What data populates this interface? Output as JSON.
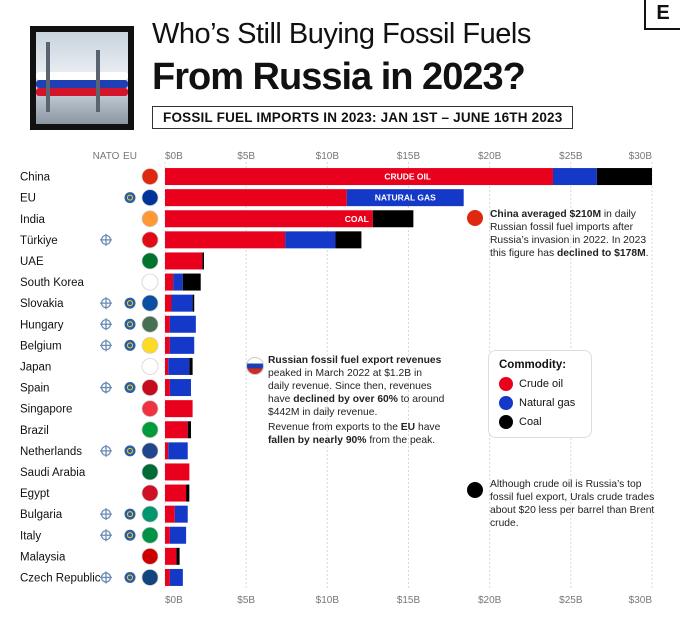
{
  "header": {
    "title_line1": "Who’s Still Buying Fossil Fuels",
    "title_line2": "From Russia in 2023?",
    "subtitle": "FOSSIL FUEL IMPORTS IN 2023: JAN 1ST – JUNE 16TH 2023",
    "corner_logo": "E"
  },
  "column_labels": {
    "nato": "NATO",
    "eu": "EU"
  },
  "legend": {
    "title": "Commodity:",
    "items": [
      {
        "label": "Crude oil",
        "color": "#e8001c"
      },
      {
        "label": "Natural gas",
        "color": "#1438c8"
      },
      {
        "label": "Coal",
        "color": "#000000"
      }
    ]
  },
  "notes": {
    "china_strong1": "China averaged $210M",
    "china_rest1": " in daily Russian fossil fuel imports after Russia’s invasion in 2022. In 2023 this figure has ",
    "china_strong2": "declined to $178M",
    "china_end": ".",
    "revenue_strong1": "Russian fossil fuel export revenues",
    "revenue_rest1": " peaked in March 2022 at $1.2B in daily revenue. Since then, revenues have ",
    "revenue_strong2": "declined by over 60%",
    "revenue_rest2": " to around $442M in daily revenue.",
    "eu_rest1": "Revenue from exports to the ",
    "eu_strong1": "EU",
    "eu_rest2": " have ",
    "eu_strong2": "fallen by nearly 90%",
    "eu_rest3": " from the peak.",
    "oil": "Although crude oil is Russia’s top fossil fuel export, Urals crude trades about $20 less per barrel than Brent crude."
  },
  "chart_data": {
    "type": "bar",
    "orientation": "horizontal",
    "stacked": true,
    "xlim": [
      0,
      30
    ],
    "ticks": [
      "$0B",
      "$5B",
      "$10B",
      "$15B",
      "$20B",
      "$25B",
      "$30B"
    ],
    "tick_values": [
      0,
      5,
      10,
      15,
      20,
      25,
      30
    ],
    "bar_labels": {
      "China": "CRUDE OIL",
      "EU": "NATURAL GAS",
      "India": "COAL"
    },
    "categories": [
      "China",
      "EU",
      "India",
      "Türkiye",
      "UAE",
      "South Korea",
      "Slovakia",
      "Hungary",
      "Belgium",
      "Japan",
      "Spain",
      "Singapore",
      "Brazil",
      "Netherlands",
      "Saudi Arabia",
      "Egypt",
      "Bulgaria",
      "Italy",
      "Malaysia",
      "Czech Republic"
    ],
    "nato": [
      false,
      false,
      false,
      true,
      false,
      false,
      true,
      true,
      true,
      false,
      true,
      false,
      false,
      true,
      false,
      false,
      true,
      true,
      false,
      true
    ],
    "eu": [
      false,
      true,
      false,
      false,
      false,
      false,
      true,
      true,
      true,
      false,
      true,
      false,
      false,
      true,
      false,
      false,
      true,
      true,
      false,
      true
    ],
    "series": [
      {
        "name": "Crude oil",
        "color": "#e8001c",
        "values": [
          23.9,
          11.2,
          12.8,
          7.4,
          2.3,
          0.5,
          0.4,
          0.3,
          0.3,
          0.2,
          0.3,
          1.7,
          1.4,
          0.2,
          1.5,
          1.3,
          0.6,
          0.3,
          0.7,
          0.3
        ]
      },
      {
        "name": "Natural gas",
        "color": "#1438c8",
        "values": [
          2.7,
          7.2,
          0.0,
          3.1,
          0.0,
          0.6,
          1.3,
          1.6,
          1.5,
          1.3,
          1.3,
          0.0,
          0.0,
          1.2,
          0.0,
          0.0,
          0.8,
          1.0,
          0.0,
          0.8
        ]
      },
      {
        "name": "Coal",
        "color": "#000000",
        "values": [
          3.4,
          0.0,
          2.5,
          1.6,
          0.1,
          1.1,
          0.1,
          0.0,
          0.0,
          0.2,
          0.0,
          0.0,
          0.2,
          0.0,
          0.0,
          0.2,
          0.0,
          0.0,
          0.2,
          0.0
        ]
      }
    ]
  }
}
